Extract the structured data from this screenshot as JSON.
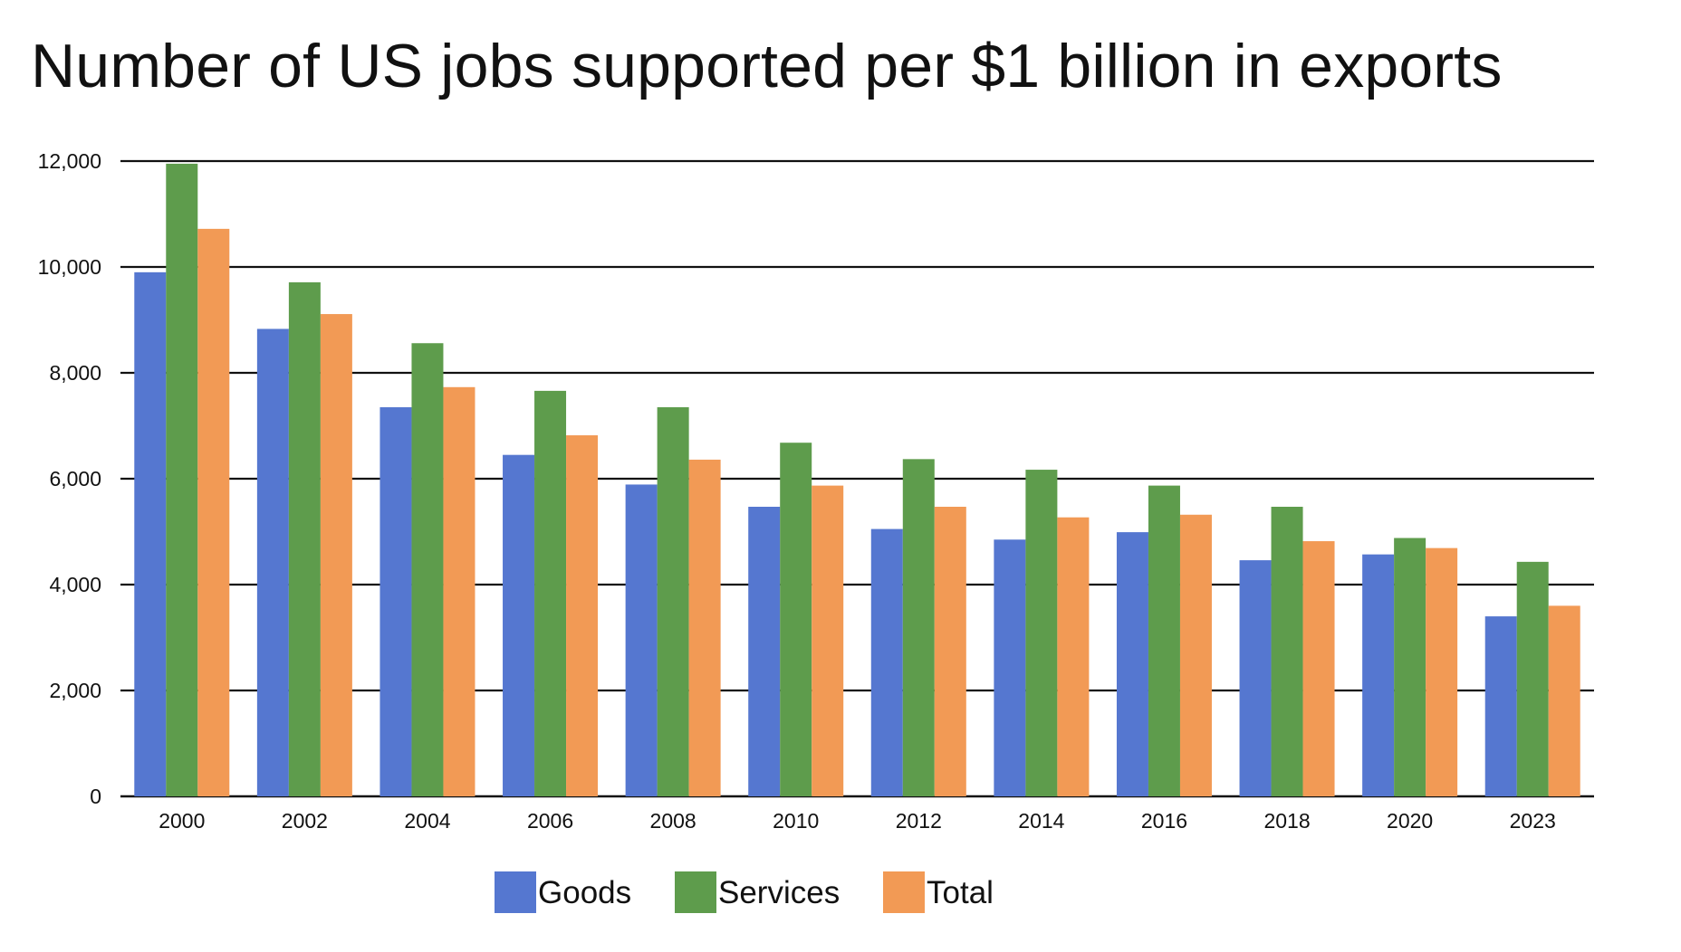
{
  "chart_data": {
    "type": "bar",
    "title": "Number of US jobs supported per $1 billion in exports",
    "categories": [
      "2000",
      "2002",
      "2004",
      "2006",
      "2008",
      "2010",
      "2012",
      "2014",
      "2016",
      "2018",
      "2020",
      "2023"
    ],
    "series": [
      {
        "name": "Goods",
        "color": "#5577D0",
        "values": [
          9900,
          8830,
          7350,
          6450,
          5890,
          5470,
          5050,
          4850,
          4990,
          4460,
          4570,
          3400
        ]
      },
      {
        "name": "Services",
        "color": "#5E9C4C",
        "values": [
          11950,
          9710,
          8560,
          7660,
          7350,
          6680,
          6370,
          6170,
          5870,
          5470,
          4880,
          4430
        ]
      },
      {
        "name": "Total",
        "color": "#F29A55",
        "values": [
          10720,
          9110,
          7730,
          6820,
          6360,
          5870,
          5470,
          5270,
          5320,
          4820,
          4690,
          3600
        ]
      }
    ],
    "xlabel": "",
    "ylabel": "",
    "ylim": [
      0,
      12000
    ],
    "yticks": [
      "0",
      "2,000",
      "4,000",
      "6,000",
      "8,000",
      "10,000",
      "12,000"
    ],
    "grid": true,
    "legend_position": "bottom-center"
  }
}
